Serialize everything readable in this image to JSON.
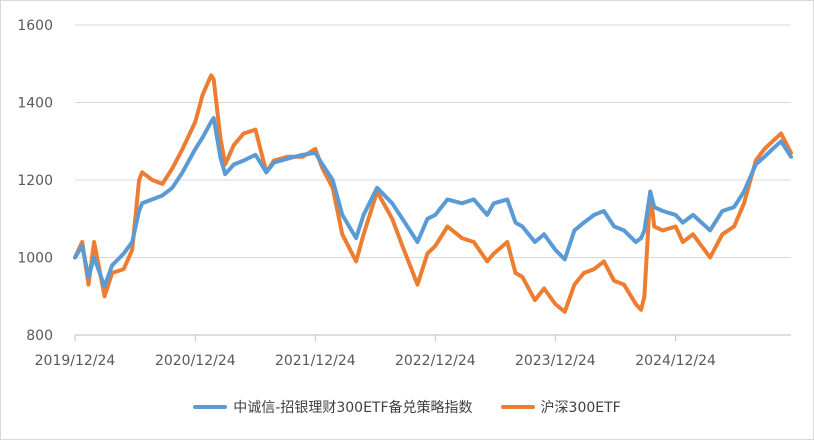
{
  "chart_data": {
    "type": "line",
    "title": "",
    "xlabel": "",
    "ylabel": "",
    "ylim": [
      800,
      1600
    ],
    "yticks": [
      800,
      1000,
      1200,
      1400,
      1600
    ],
    "ytick_labels": [
      "800",
      "1000",
      "1200",
      "1400",
      "1600"
    ],
    "xlim": [
      "2019-12-24",
      "2025-12-10"
    ],
    "xticks": [
      "2019-12-24",
      "2020-12-24",
      "2021-12-24",
      "2022-12-24",
      "2023-12-24",
      "2024-12-24"
    ],
    "xtick_labels": [
      "2019/12/24",
      "2020/12/24",
      "2021/12/24",
      "2022/12/24",
      "2023/12/24",
      "2024/12/24"
    ],
    "grid": "horizontal",
    "legend_position": "bottom",
    "series": [
      {
        "name": "中诚信-招银理财300ETF备兑策略指数",
        "color": "#5B9BD5",
        "points": [
          [
            "2019-12-24",
            1000
          ],
          [
            "2020-01-15",
            1030
          ],
          [
            "2020-02-03",
            950
          ],
          [
            "2020-02-20",
            1000
          ],
          [
            "2020-03-23",
            925
          ],
          [
            "2020-04-15",
            980
          ],
          [
            "2020-05-20",
            1010
          ],
          [
            "2020-06-15",
            1040
          ],
          [
            "2020-07-06",
            1120
          ],
          [
            "2020-07-15",
            1140
          ],
          [
            "2020-08-15",
            1150
          ],
          [
            "2020-09-15",
            1160
          ],
          [
            "2020-10-15",
            1180
          ],
          [
            "2020-11-15",
            1220
          ],
          [
            "2020-12-24",
            1280
          ],
          [
            "2021-01-15",
            1310
          ],
          [
            "2021-02-10",
            1350
          ],
          [
            "2021-02-18",
            1360
          ],
          [
            "2021-03-10",
            1260
          ],
          [
            "2021-03-25",
            1215
          ],
          [
            "2021-04-20",
            1240
          ],
          [
            "2021-05-20",
            1250
          ],
          [
            "2021-06-25",
            1265
          ],
          [
            "2021-07-28",
            1220
          ],
          [
            "2021-08-20",
            1245
          ],
          [
            "2021-09-30",
            1255
          ],
          [
            "2021-11-15",
            1265
          ],
          [
            "2021-12-24",
            1270
          ],
          [
            "2022-01-15",
            1240
          ],
          [
            "2022-02-15",
            1200
          ],
          [
            "2022-03-16",
            1110
          ],
          [
            "2022-04-27",
            1050
          ],
          [
            "2022-05-20",
            1110
          ],
          [
            "2022-06-30",
            1180
          ],
          [
            "2022-08-15",
            1140
          ],
          [
            "2022-09-15",
            1100
          ],
          [
            "2022-10-31",
            1040
          ],
          [
            "2022-11-30",
            1100
          ],
          [
            "2022-12-24",
            1110
          ],
          [
            "2023-01-30",
            1150
          ],
          [
            "2023-03-15",
            1140
          ],
          [
            "2023-04-20",
            1150
          ],
          [
            "2023-05-31",
            1110
          ],
          [
            "2023-06-20",
            1140
          ],
          [
            "2023-07-31",
            1150
          ],
          [
            "2023-08-25",
            1090
          ],
          [
            "2023-09-15",
            1080
          ],
          [
            "2023-10-23",
            1040
          ],
          [
            "2023-11-20",
            1060
          ],
          [
            "2023-12-24",
            1020
          ],
          [
            "2024-01-22",
            995
          ],
          [
            "2024-02-20",
            1070
          ],
          [
            "2024-03-20",
            1090
          ],
          [
            "2024-04-20",
            1110
          ],
          [
            "2024-05-20",
            1120
          ],
          [
            "2024-06-20",
            1080
          ],
          [
            "2024-07-20",
            1070
          ],
          [
            "2024-08-25",
            1040
          ],
          [
            "2024-09-10",
            1050
          ],
          [
            "2024-09-20",
            1070
          ],
          [
            "2024-10-08",
            1170
          ],
          [
            "2024-10-20",
            1130
          ],
          [
            "2024-11-15",
            1120
          ],
          [
            "2024-12-24",
            1110
          ],
          [
            "2025-01-15",
            1090
          ],
          [
            "2025-02-15",
            1110
          ],
          [
            "2025-04-08",
            1070
          ],
          [
            "2025-05-15",
            1120
          ],
          [
            "2025-06-20",
            1130
          ],
          [
            "2025-07-20",
            1170
          ],
          [
            "2025-08-25",
            1240
          ],
          [
            "2025-09-20",
            1260
          ],
          [
            "2025-10-15",
            1280
          ],
          [
            "2025-11-10",
            1300
          ],
          [
            "2025-12-10",
            1260
          ]
        ]
      },
      {
        "name": "沪深300ETF",
        "color": "#ED7D31",
        "points": [
          [
            "2019-12-24",
            1000
          ],
          [
            "2020-01-15",
            1040
          ],
          [
            "2020-02-03",
            930
          ],
          [
            "2020-02-20",
            1040
          ],
          [
            "2020-03-23",
            900
          ],
          [
            "2020-04-15",
            960
          ],
          [
            "2020-05-20",
            970
          ],
          [
            "2020-06-15",
            1020
          ],
          [
            "2020-07-06",
            1200
          ],
          [
            "2020-07-15",
            1220
          ],
          [
            "2020-08-15",
            1200
          ],
          [
            "2020-09-15",
            1190
          ],
          [
            "2020-10-15",
            1230
          ],
          [
            "2020-11-15",
            1280
          ],
          [
            "2020-12-24",
            1350
          ],
          [
            "2021-01-15",
            1420
          ],
          [
            "2021-02-10",
            1470
          ],
          [
            "2021-02-18",
            1460
          ],
          [
            "2021-03-10",
            1310
          ],
          [
            "2021-03-25",
            1240
          ],
          [
            "2021-04-20",
            1290
          ],
          [
            "2021-05-20",
            1320
          ],
          [
            "2021-06-25",
            1330
          ],
          [
            "2021-07-28",
            1220
          ],
          [
            "2021-08-20",
            1250
          ],
          [
            "2021-09-30",
            1260
          ],
          [
            "2021-11-15",
            1260
          ],
          [
            "2021-12-24",
            1280
          ],
          [
            "2022-01-15",
            1230
          ],
          [
            "2022-02-15",
            1180
          ],
          [
            "2022-03-16",
            1060
          ],
          [
            "2022-04-27",
            990
          ],
          [
            "2022-05-20",
            1060
          ],
          [
            "2022-06-30",
            1170
          ],
          [
            "2022-08-15",
            1100
          ],
          [
            "2022-09-15",
            1030
          ],
          [
            "2022-10-31",
            930
          ],
          [
            "2022-11-30",
            1010
          ],
          [
            "2022-12-24",
            1030
          ],
          [
            "2023-01-30",
            1080
          ],
          [
            "2023-03-15",
            1050
          ],
          [
            "2023-04-20",
            1040
          ],
          [
            "2023-05-31",
            990
          ],
          [
            "2023-06-20",
            1010
          ],
          [
            "2023-07-31",
            1040
          ],
          [
            "2023-08-25",
            960
          ],
          [
            "2023-09-15",
            950
          ],
          [
            "2023-10-23",
            890
          ],
          [
            "2023-11-20",
            920
          ],
          [
            "2023-12-24",
            880
          ],
          [
            "2024-01-22",
            860
          ],
          [
            "2024-02-20",
            930
          ],
          [
            "2024-03-20",
            960
          ],
          [
            "2024-04-20",
            970
          ],
          [
            "2024-05-20",
            990
          ],
          [
            "2024-06-20",
            940
          ],
          [
            "2024-07-20",
            930
          ],
          [
            "2024-08-25",
            880
          ],
          [
            "2024-09-10",
            865
          ],
          [
            "2024-09-20",
            900
          ],
          [
            "2024-10-08",
            1170
          ],
          [
            "2024-10-20",
            1080
          ],
          [
            "2024-11-15",
            1070
          ],
          [
            "2024-12-24",
            1080
          ],
          [
            "2025-01-15",
            1040
          ],
          [
            "2025-02-15",
            1060
          ],
          [
            "2025-04-08",
            1000
          ],
          [
            "2025-05-15",
            1060
          ],
          [
            "2025-06-20",
            1080
          ],
          [
            "2025-07-20",
            1140
          ],
          [
            "2025-08-25",
            1250
          ],
          [
            "2025-09-20",
            1280
          ],
          [
            "2025-10-15",
            1300
          ],
          [
            "2025-11-10",
            1320
          ],
          [
            "2025-12-10",
            1270
          ]
        ]
      }
    ]
  }
}
